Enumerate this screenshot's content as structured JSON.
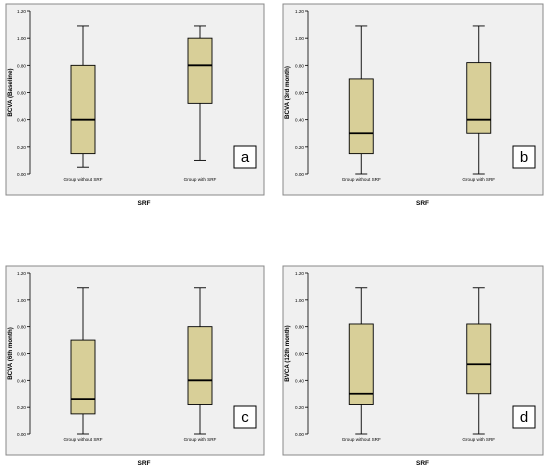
{
  "chart_data": [
    {
      "type": "boxplot",
      "panel_label": "a",
      "ylabel": "BCVA (Baseline)",
      "xlabel": "SRF",
      "categories": [
        "Group without SRF",
        "Group with SRF"
      ],
      "ylim": [
        0,
        1.2
      ],
      "yticks": [
        "0.00",
        "0.20",
        "0.40",
        "0.60",
        "0.80",
        "1.00",
        "1.20"
      ],
      "boxes": [
        {
          "min": 0.05,
          "q1": 0.15,
          "median": 0.4,
          "q3": 0.8,
          "max": 1.09
        },
        {
          "min": 0.1,
          "q1": 0.52,
          "median": 0.8,
          "q3": 1.0,
          "max": 1.09
        }
      ]
    },
    {
      "type": "boxplot",
      "panel_label": "b",
      "ylabel": "BCVA (3rd month)",
      "xlabel": "SRF",
      "categories": [
        "Group without SRF",
        "Group with SRF"
      ],
      "ylim": [
        0,
        1.2
      ],
      "yticks": [
        "0.00",
        "0.20",
        "0.40",
        "0.60",
        "0.80",
        "1.00",
        "1.20"
      ],
      "boxes": [
        {
          "min": 0.0,
          "q1": 0.15,
          "median": 0.3,
          "q3": 0.7,
          "max": 1.09
        },
        {
          "min": 0.0,
          "q1": 0.3,
          "median": 0.4,
          "q3": 0.82,
          "max": 1.09
        }
      ]
    },
    {
      "type": "boxplot",
      "panel_label": "c",
      "ylabel": "BCVA (6th month)",
      "xlabel": "SRF",
      "categories": [
        "Group without SRF",
        "Group with SRF"
      ],
      "ylim": [
        0,
        1.2
      ],
      "yticks": [
        "0.00",
        "0.20",
        "0.40",
        "0.60",
        "0.80",
        "1.00",
        "1.20"
      ],
      "boxes": [
        {
          "min": 0.0,
          "q1": 0.15,
          "median": 0.26,
          "q3": 0.7,
          "max": 1.09
        },
        {
          "min": 0.0,
          "q1": 0.22,
          "median": 0.4,
          "q3": 0.8,
          "max": 1.09
        }
      ]
    },
    {
      "type": "boxplot",
      "panel_label": "d",
      "ylabel": "BVCA (12th month)",
      "xlabel": "SRF",
      "categories": [
        "Group without SRF",
        "Group with SRF"
      ],
      "ylim": [
        0,
        1.2
      ],
      "yticks": [
        "0.00",
        "0.20",
        "0.40",
        "0.60",
        "0.80",
        "1.00",
        "1.20"
      ],
      "boxes": [
        {
          "min": 0.0,
          "q1": 0.22,
          "median": 0.3,
          "q3": 0.82,
          "max": 1.09
        },
        {
          "min": 0.0,
          "q1": 0.3,
          "median": 0.52,
          "q3": 0.82,
          "max": 1.09
        }
      ]
    }
  ],
  "colors": {
    "plot_background": "#f0f0f0",
    "box_fill": "#d8cf98",
    "box_stroke": "#000000",
    "axis": "#000000",
    "frame": "#888888",
    "page_background": "#ffffff"
  }
}
